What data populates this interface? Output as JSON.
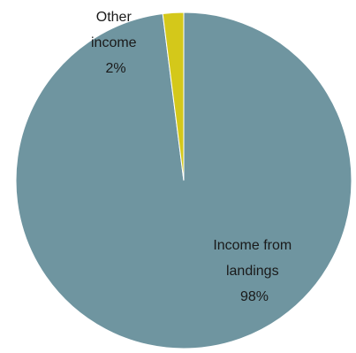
{
  "chart_data": {
    "type": "pie",
    "title": "",
    "slices": [
      {
        "label_lines": [
          "Income from",
          "landings"
        ],
        "value": 98,
        "value_text": "98%",
        "color": "#6f95a0"
      },
      {
        "label_lines": [
          "Other",
          "income"
        ],
        "value": 2,
        "value_text": "2%",
        "color": "#d4c81a"
      }
    ],
    "stroke_color": "#ffffff"
  }
}
